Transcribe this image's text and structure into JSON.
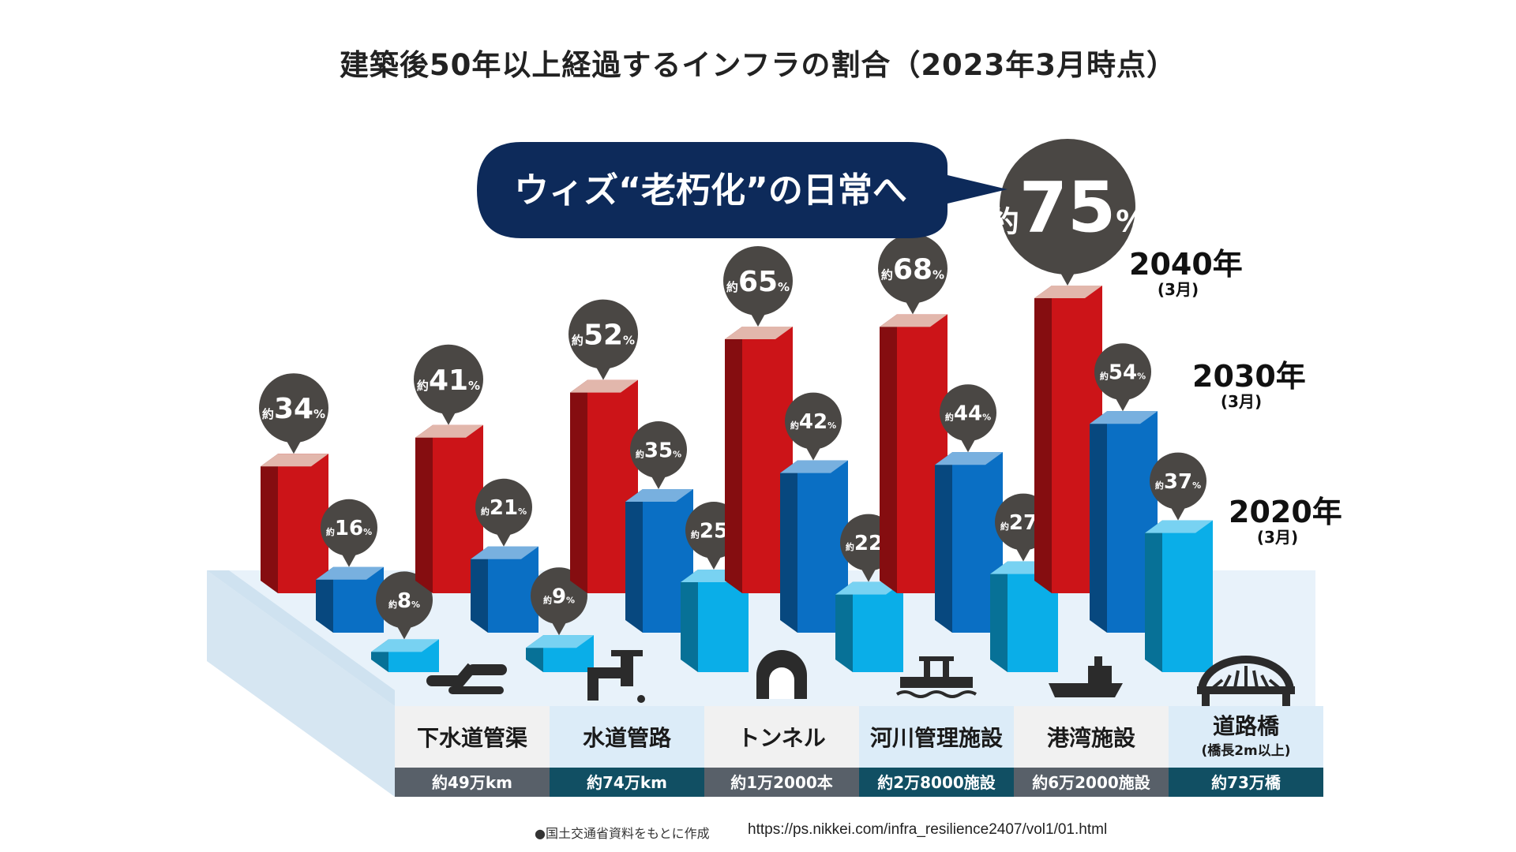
{
  "title": "建築後50年以上経過するインフラの割合（2023年3月時点）",
  "banner_text": "ウィズ“老朽化”の日常へ",
  "footer_note": "●国土交通省資料をもとに作成",
  "footer_url": "https://ps.nikkei.com/infra_resilience2407/vol1/01.html",
  "value_prefix": "約",
  "value_suffix": "%",
  "colors": {
    "y2040": "#cc1418",
    "y2030": "#0a6fc4",
    "y2020": "#0aaee8",
    "bubble": "#4a4744",
    "banner": "#0d2a5a",
    "cat_bar_dark": "#586069",
    "cat_bar_teal": "#114f63"
  },
  "chart_data": {
    "type": "bar",
    "categories": [
      "下水道管渠",
      "水道管路",
      "トンネル",
      "河川管理施設",
      "港湾施設",
      "道路橋"
    ],
    "category_sublabels": [
      "",
      "",
      "",
      "",
      "",
      "(橋長2m以上)"
    ],
    "category_totals": [
      "約49万km",
      "約74万km",
      "約1万2000本",
      "約2万8000施設",
      "約6万2000施設",
      "約73万橋"
    ],
    "category_icons": [
      "pipe-icon",
      "faucet-icon",
      "tunnel-icon",
      "river-facility-icon",
      "ship-icon",
      "bridge-icon"
    ],
    "series": [
      {
        "name": "2040年",
        "sub": "(3月)",
        "values": [
          34,
          41,
          52,
          65,
          68,
          75
        ]
      },
      {
        "name": "2030年",
        "sub": "(3月)",
        "values": [
          16,
          21,
          35,
          42,
          44,
          54
        ]
      },
      {
        "name": "2020年",
        "sub": "(3月)",
        "values": [
          8,
          9,
          25,
          22,
          27,
          37
        ]
      }
    ]
  }
}
